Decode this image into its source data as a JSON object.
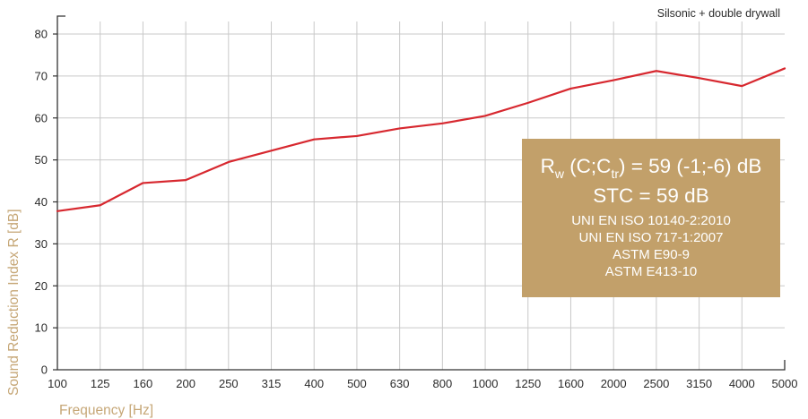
{
  "chart_data": {
    "type": "line",
    "title": "",
    "subtitle": "Silsonic + double drywall",
    "xlabel": "Frequency [Hz]",
    "ylabel": "Sound Reduction Index R [dB]",
    "x": [
      "100",
      "125",
      "160",
      "200",
      "250",
      "315",
      "400",
      "500",
      "630",
      "800",
      "1000",
      "1250",
      "1600",
      "2000",
      "2500",
      "3150",
      "4000",
      "5000"
    ],
    "y_ticks": [
      "0",
      "10",
      "20",
      "30",
      "40",
      "50",
      "60",
      "70",
      "80"
    ],
    "ylim": [
      0,
      80
    ],
    "grid": true,
    "series": [
      {
        "values": [
          37.8,
          39.2,
          44.5,
          45.2,
          49.5,
          52.2,
          54.9,
          55.7,
          57.5,
          58.7,
          60.5,
          63.6,
          67.0,
          69.0,
          71.2,
          69.5,
          67.6,
          71.8
        ],
        "color": "#d7282f"
      }
    ],
    "annotation": {
      "rw_main": "R",
      "rw_sub": "w",
      "rw_open": " (C;C",
      "rw_sub2": "tr",
      "rw_close": ") = 59 (-1;-6) dB",
      "stc": "STC = 59 dB",
      "standards": [
        "UNI EN ISO 10140-2:2010",
        "UNI EN ISO 717-1:2007",
        "ASTM E90-9",
        "ASTM E413-10"
      ],
      "background": "#c2a06a"
    },
    "colors": {
      "axis_title": "#c6a777",
      "line": "#d7282f"
    }
  }
}
